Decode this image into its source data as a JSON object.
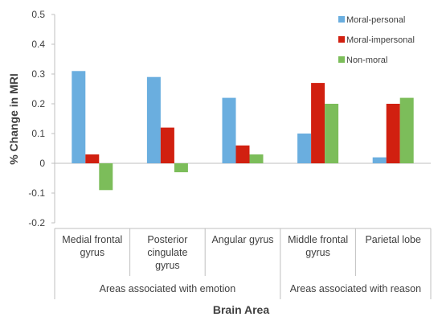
{
  "chart_data": {
    "type": "bar",
    "ylabel": "% Change in MRI",
    "xlabel": "Brain Area",
    "ylim": [
      -0.2,
      0.5
    ],
    "yticks": [
      "0.5",
      "0.4",
      "0.3",
      "0.2",
      "0.1",
      "0",
      "-0.1",
      "-0.2"
    ],
    "ytick_values": [
      0.5,
      0.4,
      0.3,
      0.2,
      0.1,
      0,
      -0.1,
      -0.2
    ],
    "categories": [
      [
        "Medial frontal",
        "gyrus"
      ],
      [
        "Posterior",
        "cingulate",
        "gyrus"
      ],
      [
        "Angular gyrus"
      ],
      [
        "Middle frontal",
        "gyrus"
      ],
      [
        "Parietal lobe"
      ]
    ],
    "groups": [
      {
        "label": "Areas associated with emotion",
        "span": [
          0,
          2
        ]
      },
      {
        "label": "Areas associated with reason",
        "span": [
          3,
          4
        ]
      }
    ],
    "series": [
      {
        "name": "Moral-personal",
        "color": "#6aaedf",
        "values": [
          0.31,
          0.29,
          0.22,
          0.1,
          0.02
        ]
      },
      {
        "name": "Moral-impersonal",
        "color": "#d12010",
        "values": [
          0.03,
          0.12,
          0.06,
          0.27,
          0.2
        ]
      },
      {
        "name": "Non-moral",
        "color": "#7cbd5a",
        "values": [
          -0.09,
          -0.03,
          0.03,
          0.2,
          0.22
        ]
      }
    ],
    "legend_position": "top-right",
    "grid": false
  }
}
